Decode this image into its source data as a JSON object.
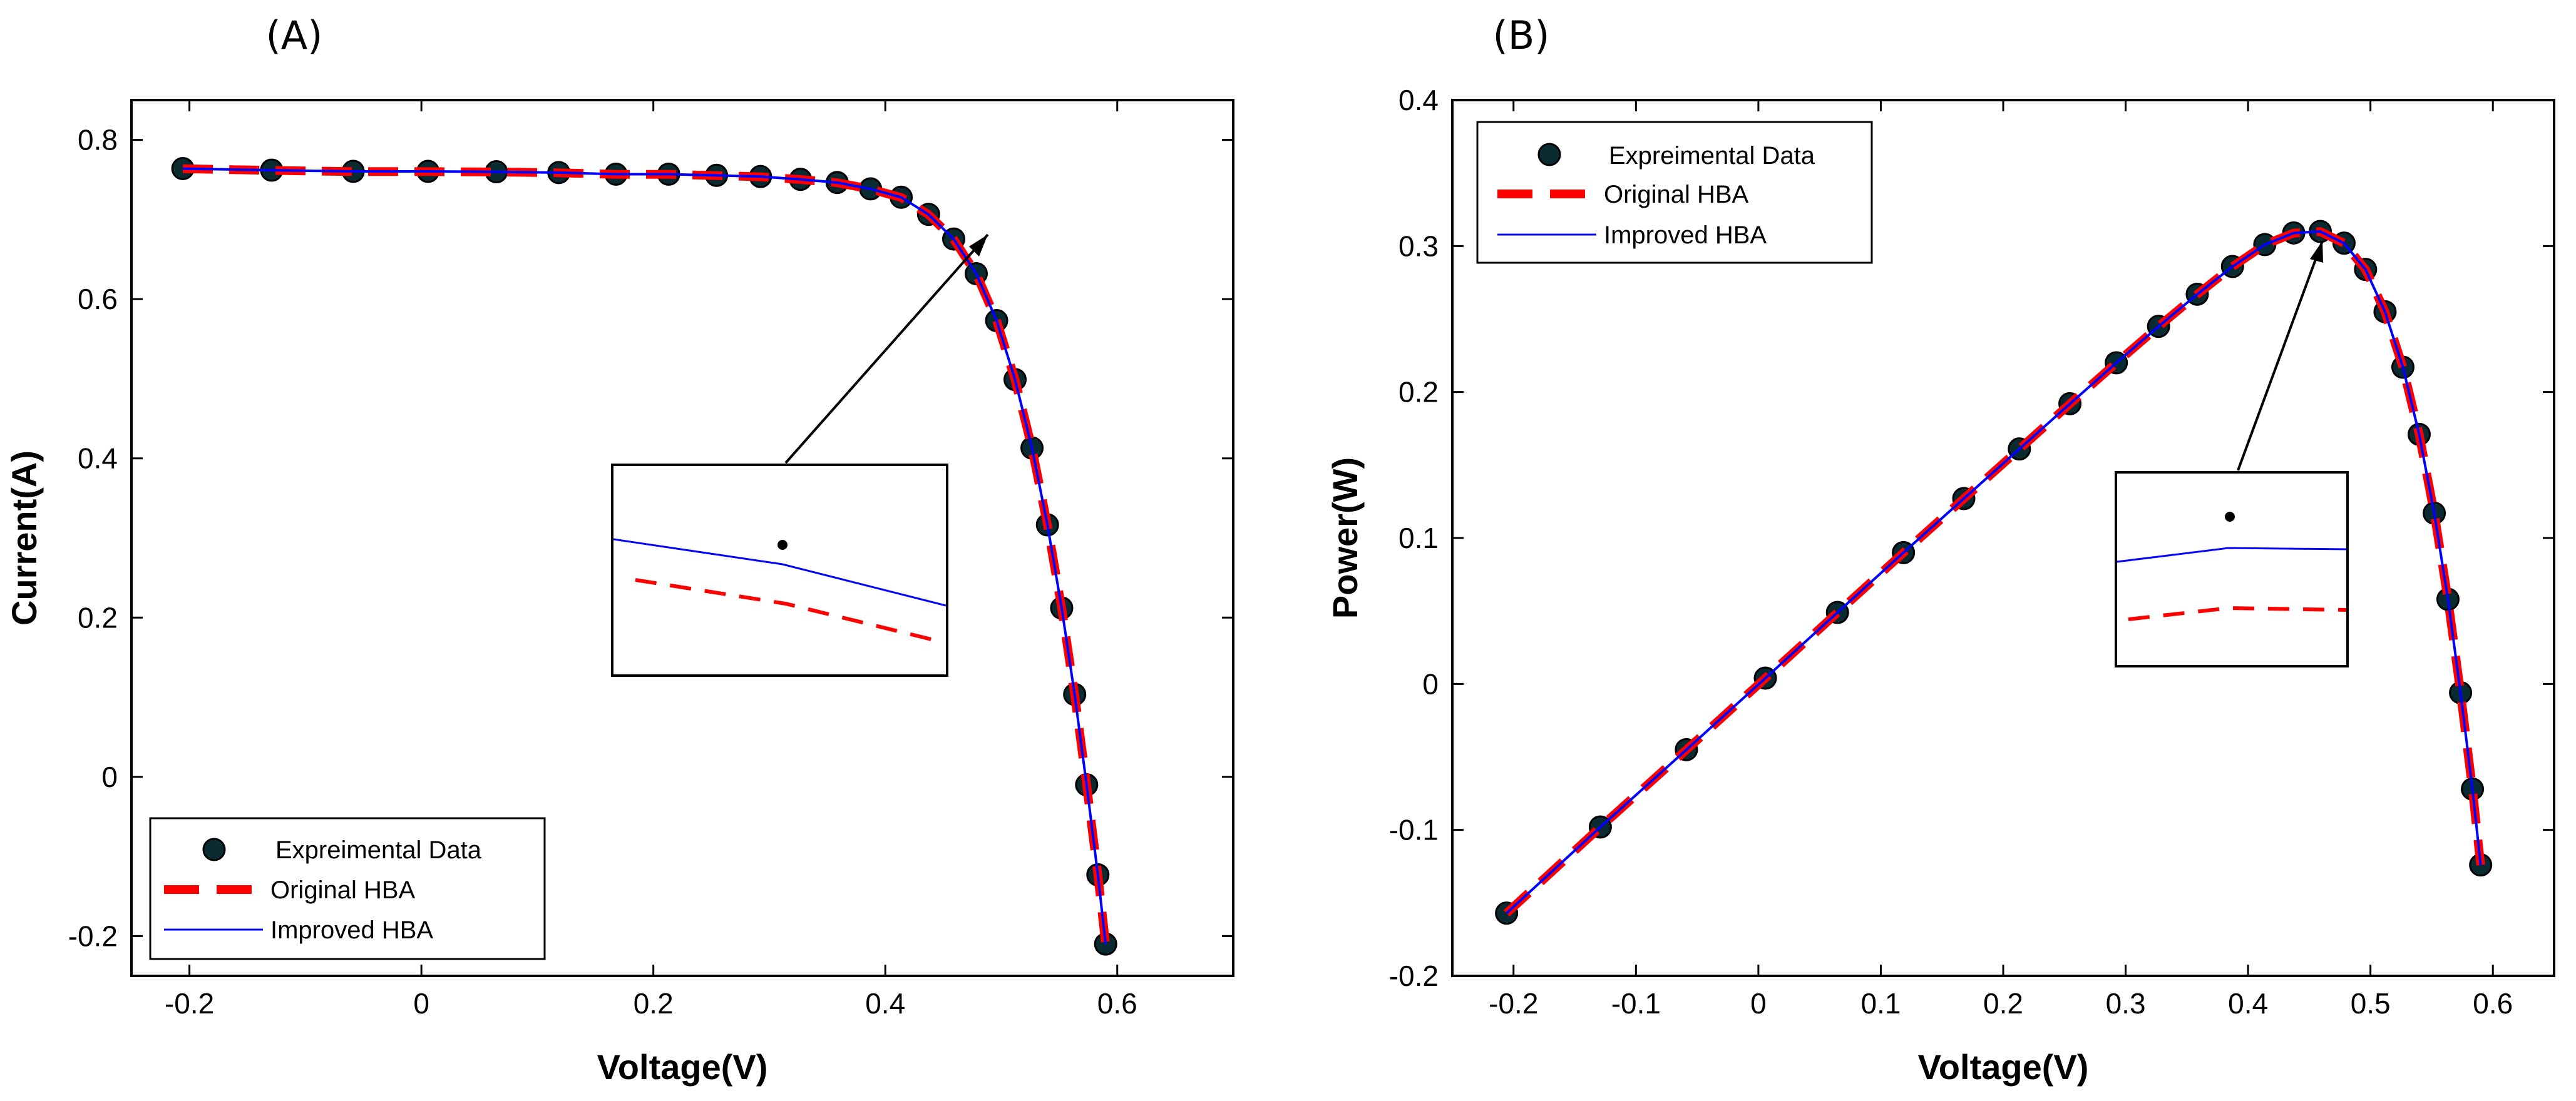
{
  "chart_data": [
    {
      "type": "line",
      "panel_label": "(A)",
      "xlabel": "Voltage(V)",
      "ylabel": "Current(A)",
      "xlim": [
        -0.25,
        0.7
      ],
      "ylim": [
        -0.25,
        0.85
      ],
      "xticks": [
        -0.2,
        0,
        0.2,
        0.4,
        0.6
      ],
      "yticks": [
        -0.2,
        0,
        0.2,
        0.4,
        0.6,
        0.8
      ],
      "legend_position": "bottom-left",
      "series": [
        {
          "name": "Expreimental Data",
          "style": "markers",
          "color": "#000000",
          "x": [
            -0.2057,
            -0.1291,
            -0.0588,
            0.0057,
            0.0646,
            0.1185,
            0.1678,
            0.2132,
            0.2545,
            0.2924,
            0.3269,
            0.3585,
            0.3873,
            0.4137,
            0.4373,
            0.459,
            0.4784,
            0.496,
            0.5119,
            0.5265,
            0.5398,
            0.5521,
            0.5633,
            0.5736,
            0.5833,
            0.59
          ],
          "y": [
            0.764,
            0.762,
            0.7605,
            0.7605,
            0.76,
            0.759,
            0.757,
            0.757,
            0.7555,
            0.754,
            0.7505,
            0.7465,
            0.7385,
            0.728,
            0.7065,
            0.6755,
            0.632,
            0.573,
            0.499,
            0.413,
            0.3165,
            0.212,
            0.1035,
            -0.01,
            -0.123,
            -0.21
          ]
        },
        {
          "name": "Original HBA",
          "style": "dashed",
          "color": "#ff0000",
          "x": [
            -0.2057,
            -0.1291,
            -0.0588,
            0.0057,
            0.0646,
            0.1185,
            0.1678,
            0.2132,
            0.2545,
            0.2924,
            0.3269,
            0.3585,
            0.3873,
            0.4137,
            0.4373,
            0.459,
            0.4784,
            0.496,
            0.5119,
            0.5265,
            0.5398,
            0.5521,
            0.5633,
            0.5736,
            0.5833,
            0.59
          ],
          "y": [
            0.7637,
            0.7617,
            0.7602,
            0.7602,
            0.7597,
            0.7587,
            0.7567,
            0.7567,
            0.7552,
            0.7537,
            0.7502,
            0.7462,
            0.7382,
            0.7277,
            0.7062,
            0.6752,
            0.6317,
            0.5727,
            0.4987,
            0.4127,
            0.3162,
            0.2117,
            0.1032,
            -0.0103,
            -0.1233,
            -0.2103
          ]
        },
        {
          "name": "Improved HBA",
          "style": "solid",
          "color": "#0000ff",
          "x": [
            -0.2057,
            -0.1291,
            -0.0588,
            0.0057,
            0.0646,
            0.1185,
            0.1678,
            0.2132,
            0.2545,
            0.2924,
            0.3269,
            0.3585,
            0.3873,
            0.4137,
            0.4373,
            0.459,
            0.4784,
            0.496,
            0.5119,
            0.5265,
            0.5398,
            0.5521,
            0.5633,
            0.5736,
            0.5833,
            0.59
          ],
          "y": [
            0.7639,
            0.7619,
            0.7604,
            0.7604,
            0.7599,
            0.7589,
            0.7569,
            0.7569,
            0.7554,
            0.7539,
            0.7504,
            0.7464,
            0.7384,
            0.7279,
            0.7064,
            0.6754,
            0.6319,
            0.5729,
            0.4989,
            0.4129,
            0.3164,
            0.2119,
            0.1034,
            -0.0101,
            -0.1231,
            -0.2101
          ]
        }
      ],
      "annotation": {
        "type": "zoom-inset",
        "target_x": 0.455,
        "target_y": 0.672
      }
    },
    {
      "type": "line",
      "panel_label": "(B)",
      "xlabel": "Voltage(V)",
      "ylabel": "Power(W)",
      "xlim": [
        -0.25,
        0.65
      ],
      "ylim": [
        -0.2,
        0.4
      ],
      "xticks": [
        -0.2,
        -0.1,
        0,
        0.1,
        0.2,
        0.3,
        0.4,
        0.5,
        0.6
      ],
      "yticks": [
        -0.2,
        -0.1,
        0,
        0.1,
        0.2,
        0.3,
        0.4
      ],
      "legend_position": "top-left",
      "series": [
        {
          "name": "Expreimental Data",
          "style": "markers",
          "color": "#000000",
          "x": [
            -0.2057,
            -0.1291,
            -0.0588,
            0.0057,
            0.0646,
            0.1185,
            0.1678,
            0.2132,
            0.2545,
            0.2924,
            0.3269,
            0.3585,
            0.3873,
            0.4137,
            0.4373,
            0.459,
            0.4784,
            0.496,
            0.5119,
            0.5265,
            0.5398,
            0.5521,
            0.5633,
            0.5736,
            0.5833,
            0.59
          ],
          "y": [
            -0.157,
            -0.098,
            -0.045,
            0.004,
            0.049,
            0.09,
            0.127,
            0.161,
            0.192,
            0.22,
            0.245,
            0.267,
            0.286,
            0.301,
            0.309,
            0.31,
            0.302,
            0.284,
            0.255,
            0.217,
            0.171,
            0.117,
            0.058,
            -0.006,
            -0.072,
            -0.124
          ]
        },
        {
          "name": "Original HBA",
          "style": "dashed",
          "color": "#ff0000",
          "x": [
            -0.2057,
            -0.1291,
            -0.0588,
            0.0057,
            0.0646,
            0.1185,
            0.1678,
            0.2132,
            0.2545,
            0.2924,
            0.3269,
            0.3585,
            0.3873,
            0.4137,
            0.4373,
            0.459,
            0.4784,
            0.496,
            0.5119,
            0.5265,
            0.5398,
            0.5521,
            0.5633,
            0.5736,
            0.5833,
            0.59
          ],
          "y": [
            -0.1571,
            -0.0981,
            -0.0451,
            0.0039,
            0.0489,
            0.0899,
            0.1269,
            0.1609,
            0.1919,
            0.2199,
            0.2449,
            0.2669,
            0.2859,
            0.3009,
            0.3089,
            0.3099,
            0.3019,
            0.2839,
            0.2549,
            0.2169,
            0.1709,
            0.1169,
            0.0579,
            -0.0061,
            -0.0721,
            -0.1241
          ]
        },
        {
          "name": "Improved HBA",
          "style": "solid",
          "color": "#0000ff",
          "x": [
            -0.2057,
            -0.1291,
            -0.0588,
            0.0057,
            0.0646,
            0.1185,
            0.1678,
            0.2132,
            0.2545,
            0.2924,
            0.3269,
            0.3585,
            0.3873,
            0.4137,
            0.4373,
            0.459,
            0.4784,
            0.496,
            0.5119,
            0.5265,
            0.5398,
            0.5521,
            0.5633,
            0.5736,
            0.5833,
            0.59
          ],
          "y": [
            -0.15705,
            -0.09805,
            -0.04505,
            0.00395,
            0.04895,
            0.08995,
            0.12695,
            0.16095,
            0.19195,
            0.21995,
            0.24495,
            0.26695,
            0.28595,
            0.30095,
            0.30895,
            0.30995,
            0.30195,
            0.28395,
            0.25495,
            0.21695,
            0.17095,
            0.11695,
            0.05795,
            -0.00605,
            -0.07205,
            -0.12405
          ]
        }
      ],
      "annotation": {
        "type": "zoom-inset",
        "target_x": 0.455,
        "target_y": 0.307
      }
    }
  ]
}
